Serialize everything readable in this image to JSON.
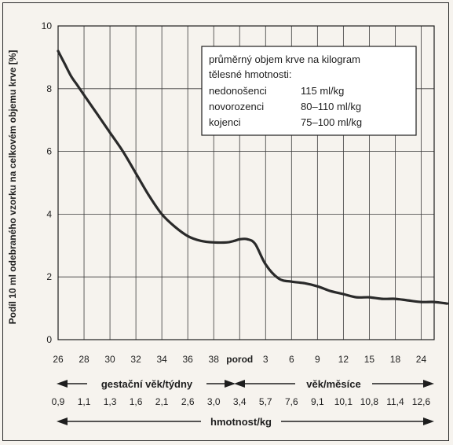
{
  "chart_data": {
    "type": "line",
    "ylabel": "Podíl 10 ml odebraného vzorku na celkovém objemu krve [%]",
    "ylim": [
      0,
      10
    ],
    "yticks": [
      "0",
      "2",
      "4",
      "6",
      "8",
      "10"
    ],
    "x_tick_labels": [
      "26",
      "28",
      "30",
      "32",
      "34",
      "36",
      "38",
      "porod",
      "3",
      "6",
      "9",
      "12",
      "15",
      "18",
      "24"
    ],
    "weight_tick_labels": [
      "0,9",
      "1,1",
      "1,3",
      "1,6",
      "2,1",
      "2,6",
      "3,0",
      "3,4",
      "5,7",
      "7,6",
      "9,1",
      "10,1",
      "10,8",
      "11,4",
      "12,6"
    ],
    "axis_gestational": "gestační věk/týdny",
    "axis_age": "věk/měsíce",
    "axis_weight": "hmotnost/kg",
    "grid": true,
    "series": [
      {
        "x": [
          0,
          0.25,
          0.5,
          0.75,
          1,
          1.5,
          2,
          2.5,
          3,
          3.5,
          4,
          4.5,
          5,
          5.5,
          6,
          6.5,
          6.8,
          7,
          7.3,
          7.6,
          8,
          8.5,
          9,
          9.5,
          10,
          10.5,
          11,
          11.5,
          12,
          12.5,
          13,
          13.5,
          14,
          14.5,
          15
        ],
        "values": [
          9.2,
          8.8,
          8.4,
          8.1,
          7.8,
          7.2,
          6.6,
          6.0,
          5.3,
          4.6,
          4.0,
          3.6,
          3.3,
          3.15,
          3.1,
          3.1,
          3.15,
          3.2,
          3.2,
          3.05,
          2.4,
          1.95,
          1.85,
          1.8,
          1.7,
          1.55,
          1.45,
          1.35,
          1.35,
          1.3,
          1.3,
          1.25,
          1.2,
          1.2,
          1.15
        ]
      }
    ]
  },
  "legend": {
    "title_line1": "průměrný objem krve na kilogram",
    "title_line2": "tělesné hmotnosti:",
    "rows": [
      {
        "label": "nedonošenci",
        "value": "115 ml/kg"
      },
      {
        "label": "novorozenci",
        "value": "80–110 ml/kg"
      },
      {
        "label": "kojenci",
        "value": "75–100 ml/kg"
      }
    ]
  }
}
